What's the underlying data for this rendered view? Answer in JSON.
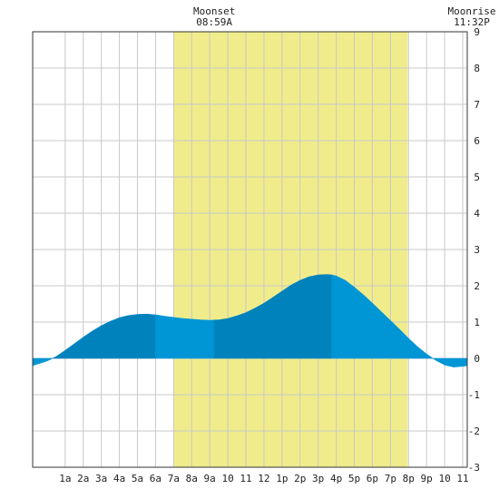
{
  "chart_data": {
    "type": "area",
    "title": "",
    "xlabel": "",
    "ylabel": "",
    "x_unit": "hour of day",
    "xlim": [
      -0.8,
      23.25
    ],
    "ylim": [
      -3,
      9
    ],
    "grid": true,
    "x_ticks": [
      {
        "x": 1,
        "label": "1a"
      },
      {
        "x": 2,
        "label": "2a"
      },
      {
        "x": 3,
        "label": "3a"
      },
      {
        "x": 4,
        "label": "4a"
      },
      {
        "x": 5,
        "label": "5a"
      },
      {
        "x": 6,
        "label": "6a"
      },
      {
        "x": 7,
        "label": "7a"
      },
      {
        "x": 8,
        "label": "8a"
      },
      {
        "x": 9,
        "label": "9a"
      },
      {
        "x": 10,
        "label": "10"
      },
      {
        "x": 11,
        "label": "11"
      },
      {
        "x": 12,
        "label": "12"
      },
      {
        "x": 13,
        "label": "1p"
      },
      {
        "x": 14,
        "label": "2p"
      },
      {
        "x": 15,
        "label": "3p"
      },
      {
        "x": 16,
        "label": "4p"
      },
      {
        "x": 17,
        "label": "5p"
      },
      {
        "x": 18,
        "label": "6p"
      },
      {
        "x": 19,
        "label": "7p"
      },
      {
        "x": 20,
        "label": "8p"
      },
      {
        "x": 21,
        "label": "9p"
      },
      {
        "x": 22,
        "label": "10"
      },
      {
        "x": 23,
        "label": "11"
      }
    ],
    "y_ticks": [
      -3,
      -2,
      -1,
      0,
      1,
      2,
      3,
      4,
      5,
      6,
      7,
      8,
      9
    ],
    "highlight_band": {
      "x_start": 7.0,
      "x_end": 19.95,
      "color": "#f0ec8c"
    },
    "series": [
      {
        "x": [
          -0.8,
          0.0,
          0.5,
          1.0,
          1.5,
          2.0,
          2.5,
          3.0,
          3.5,
          4.0,
          4.5,
          5.0,
          5.5,
          6.0,
          6.5,
          7.0,
          7.5,
          8.0,
          8.5,
          9.0,
          9.5,
          10.0,
          10.5,
          11.0,
          11.5,
          12.0,
          12.5,
          13.0,
          13.5,
          14.0,
          14.5,
          15.0,
          15.5,
          15.75,
          16.0,
          16.5,
          17.0,
          17.5,
          18.0,
          18.5,
          19.0,
          19.5,
          20.0,
          20.5,
          21.0,
          21.5,
          22.0,
          22.5,
          23.0,
          23.25
        ],
        "y": [
          -0.2,
          -0.07,
          0.05,
          0.22,
          0.4,
          0.58,
          0.75,
          0.9,
          1.02,
          1.12,
          1.18,
          1.21,
          1.22,
          1.2,
          1.16,
          1.13,
          1.1,
          1.08,
          1.06,
          1.05,
          1.06,
          1.1,
          1.17,
          1.26,
          1.38,
          1.52,
          1.68,
          1.85,
          2.02,
          2.15,
          2.25,
          2.3,
          2.31,
          2.3,
          2.27,
          2.15,
          1.96,
          1.75,
          1.52,
          1.28,
          1.04,
          0.8,
          0.55,
          0.32,
          0.12,
          -0.05,
          -0.18,
          -0.24,
          -0.22,
          -0.2
        ]
      }
    ],
    "color_segments": [
      {
        "from": -0.8,
        "to": 0.2,
        "color": "#0096d6"
      },
      {
        "from": 0.2,
        "to": 6.0,
        "color": "#0082bd"
      },
      {
        "from": 6.0,
        "to": 9.25,
        "color": "#0096d6"
      },
      {
        "from": 9.25,
        "to": 15.75,
        "color": "#0082bd"
      },
      {
        "from": 15.75,
        "to": 23.25,
        "color": "#0096d6"
      }
    ],
    "annotations": [
      {
        "x": 9.25,
        "lines": [
          "Moonset",
          "08:59A"
        ]
      },
      {
        "x": 23.5,
        "lines": [
          "Moonrise",
          "11:32P"
        ]
      }
    ]
  }
}
